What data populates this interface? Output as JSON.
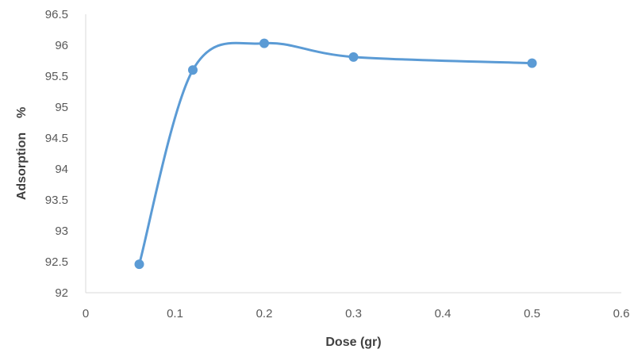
{
  "chart_data": {
    "type": "scatter",
    "title": "",
    "xlabel": "Dose (gr)",
    "ylabel": "Adsorption    %",
    "xlim": [
      0,
      0.6
    ],
    "ylim": [
      92,
      96.5
    ],
    "x_ticks": [
      "0",
      "0.1",
      "0.2",
      "0.3",
      "0.4",
      "0.5",
      "0.6"
    ],
    "y_ticks": [
      "92",
      "92.5",
      "93",
      "93.5",
      "94",
      "94.5",
      "95",
      "95.5",
      "96",
      "96.5"
    ],
    "grid": false,
    "smoothed_line": true,
    "series": [
      {
        "x": [
          0.06,
          0.12,
          0.2,
          0.3,
          0.5
        ],
        "y": [
          92.46,
          95.6,
          96.03,
          95.81,
          95.71
        ],
        "color": "#5b9bd5"
      }
    ]
  }
}
